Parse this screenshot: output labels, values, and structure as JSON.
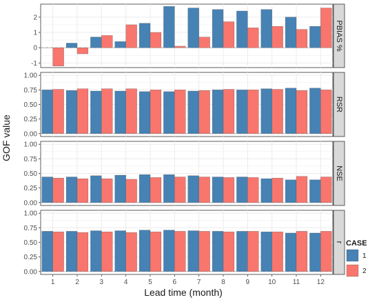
{
  "figure": {
    "ylabel": "GOF value",
    "xlabel": "Lead time (month)",
    "legend": {
      "title": "CASE",
      "position": "right"
    }
  },
  "colors": {
    "case1": "#4682B4",
    "case2": "#F8766D",
    "panel_bg": "#FFFFFF",
    "grid": "#EBEBEB",
    "strip_bg": "#D9D9D9",
    "hline": "#B3B3B3"
  },
  "chart_data": [
    {
      "type": "bar",
      "title": "PBIAS %",
      "categories": [
        "1",
        "2",
        "3",
        "4",
        "5",
        "6",
        "7",
        "8",
        "9",
        "10",
        "11",
        "12"
      ],
      "series": [
        {
          "name": "1",
          "values": [
            0.0,
            0.3,
            0.7,
            0.4,
            1.6,
            2.7,
            2.6,
            2.5,
            2.4,
            2.5,
            2.0,
            1.4
          ]
        },
        {
          "name": "2",
          "values": [
            -1.2,
            -0.4,
            0.8,
            1.5,
            1.0,
            0.1,
            0.7,
            1.7,
            1.3,
            1.4,
            1.2,
            2.6
          ]
        }
      ],
      "ylim": [
        -1.3,
        2.85
      ],
      "yticks": [
        -1,
        0,
        1,
        2
      ],
      "grid": true
    },
    {
      "type": "bar",
      "title": "RSR",
      "categories": [
        "1",
        "2",
        "3",
        "4",
        "5",
        "6",
        "7",
        "8",
        "9",
        "10",
        "11",
        "12"
      ],
      "series": [
        {
          "name": "1",
          "values": [
            0.75,
            0.74,
            0.73,
            0.73,
            0.72,
            0.72,
            0.73,
            0.75,
            0.75,
            0.77,
            0.78,
            0.78
          ]
        },
        {
          "name": "2",
          "values": [
            0.76,
            0.77,
            0.77,
            0.77,
            0.75,
            0.75,
            0.74,
            0.76,
            0.75,
            0.76,
            0.74,
            0.75
          ]
        }
      ],
      "ylim": [
        -0.05,
        1.05
      ],
      "yticks": [
        0.0,
        0.25,
        0.5,
        0.75,
        1.0
      ],
      "grid": true
    },
    {
      "type": "bar",
      "title": "NSE",
      "categories": [
        "1",
        "2",
        "3",
        "4",
        "5",
        "6",
        "7",
        "8",
        "9",
        "10",
        "11",
        "12"
      ],
      "series": [
        {
          "name": "1",
          "values": [
            0.44,
            0.44,
            0.46,
            0.47,
            0.48,
            0.48,
            0.46,
            0.44,
            0.44,
            0.41,
            0.39,
            0.39
          ]
        },
        {
          "name": "2",
          "values": [
            0.42,
            0.41,
            0.41,
            0.4,
            0.43,
            0.44,
            0.44,
            0.43,
            0.43,
            0.42,
            0.45,
            0.44
          ]
        }
      ],
      "ylim": [
        -0.05,
        1.05
      ],
      "yticks": [
        0.0,
        0.25,
        0.5,
        0.75,
        1.0
      ],
      "grid": true
    },
    {
      "type": "bar",
      "title": "r",
      "categories": [
        "1",
        "2",
        "3",
        "4",
        "5",
        "6",
        "7",
        "8",
        "9",
        "10",
        "11",
        "12"
      ],
      "series": [
        {
          "name": "1",
          "values": [
            0.69,
            0.69,
            0.7,
            0.7,
            0.71,
            0.71,
            0.7,
            0.69,
            0.69,
            0.68,
            0.66,
            0.66
          ]
        },
        {
          "name": "2",
          "values": [
            0.68,
            0.67,
            0.68,
            0.67,
            0.68,
            0.69,
            0.69,
            0.68,
            0.69,
            0.68,
            0.69,
            0.69
          ]
        }
      ],
      "ylim": [
        -0.05,
        1.05
      ],
      "yticks": [
        0.0,
        0.25,
        0.5,
        0.75,
        1.0
      ],
      "grid": true
    }
  ]
}
